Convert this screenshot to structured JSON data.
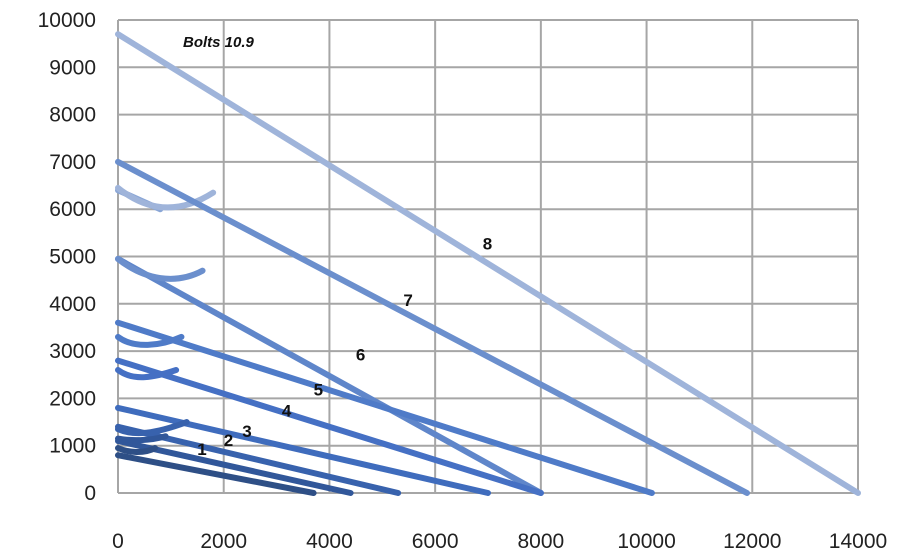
{
  "chart_data": {
    "type": "line",
    "title": "Bolts 10.9",
    "xlabel": "",
    "ylabel": "",
    "xlim": [
      0,
      14000
    ],
    "ylim": [
      0,
      10000
    ],
    "x_ticks": [
      0,
      2000,
      4000,
      6000,
      8000,
      10000,
      12000,
      14000
    ],
    "y_ticks": [
      0,
      1000,
      2000,
      3000,
      4000,
      5000,
      6000,
      7000,
      8000,
      9000,
      10000
    ],
    "grid": true,
    "legend": "none",
    "series": [
      {
        "label": "1",
        "color": "#2e4f86",
        "line": [
          [
            0,
            800
          ],
          [
            3700,
            0
          ]
        ],
        "curve": [
          [
            0,
            950
          ],
          [
            200,
            850
          ],
          [
            500,
            830
          ],
          [
            700,
            950
          ]
        ],
        "label_at": [
          1500,
          800
        ]
      },
      {
        "label": "2",
        "color": "#31579a",
        "line": [
          [
            0,
            1100
          ],
          [
            4400,
            0
          ]
        ],
        "curve": [
          [
            0,
            1150
          ],
          [
            250,
            1100
          ],
          [
            600,
            1100
          ],
          [
            900,
            1200
          ]
        ],
        "label_at": [
          2000,
          990
        ]
      },
      {
        "label": "3",
        "color": "#3862ad",
        "line": [
          [
            0,
            1400
          ],
          [
            5300,
            0
          ]
        ],
        "curve": [
          [
            0,
            1350
          ],
          [
            300,
            1200
          ],
          [
            700,
            1250
          ],
          [
            1300,
            1500
          ]
        ],
        "label_at": [
          2350,
          1180
        ]
      },
      {
        "label": "4",
        "color": "#3f6cbd",
        "line": [
          [
            0,
            1800
          ],
          [
            7000,
            0
          ]
        ],
        "curve": [],
        "label_at": [
          3100,
          1620
        ]
      },
      {
        "label": "5",
        "color": "#4570c4",
        "line": [
          [
            0,
            2800
          ],
          [
            8000,
            0
          ]
        ],
        "curve": [
          [
            0,
            2600
          ],
          [
            300,
            2350
          ],
          [
            700,
            2450
          ],
          [
            1100,
            2600
          ]
        ],
        "label_at": [
          3700,
          2060
        ]
      },
      {
        "label": "6",
        "color": "#4f7bc8",
        "line": [
          [
            0,
            3600
          ],
          [
            10100,
            0
          ]
        ],
        "curve": [
          [
            0,
            3300
          ],
          [
            300,
            3050
          ],
          [
            800,
            3100
          ],
          [
            1200,
            3300
          ]
        ],
        "label_at": [
          4500,
          2800
        ]
      },
      {
        "label": "7",
        "color": "#6b8fcd",
        "line": [
          [
            0,
            7000
          ],
          [
            11900,
            0
          ]
        ],
        "curve": [
          [
            0,
            4950
          ],
          [
            500,
            4500
          ],
          [
            1100,
            4400
          ],
          [
            1600,
            4700
          ]
        ],
        "label_at": [
          5400,
          3950
        ]
      },
      {
        "label": "8",
        "color": "#9fb4da",
        "line": [
          [
            0,
            9700
          ],
          [
            14000,
            0
          ]
        ],
        "curve": [
          [
            0,
            6450
          ],
          [
            500,
            6000
          ],
          [
            1100,
            5850
          ],
          [
            1800,
            6350
          ]
        ],
        "label_at": [
          6900,
          5150
        ]
      }
    ],
    "extra_lines": [
      {
        "color": "#5f86ca",
        "line": [
          [
            0,
            4950
          ],
          [
            8000,
            0
          ]
        ]
      },
      {
        "color": "#8aa6d6",
        "line": [
          [
            0,
            6400
          ],
          [
            800,
            6000
          ]
        ]
      }
    ]
  }
}
